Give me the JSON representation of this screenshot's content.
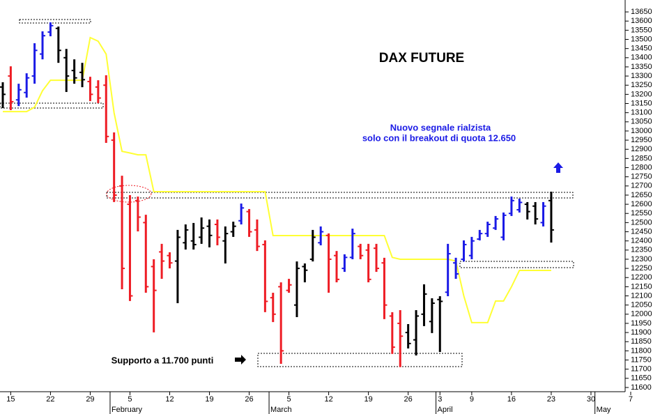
{
  "chart_data": {
    "type": "ohlc",
    "title": "DAX FUTURE",
    "signal_text": [
      "Nuovo segnale rialzista",
      "solo con il breakout di quota 12.650"
    ],
    "support_text": "Supporto a 11.700 punti",
    "x": [
      0,
      1,
      2,
      3,
      4,
      5,
      6,
      7,
      8,
      9,
      10,
      11,
      12,
      13,
      14,
      15,
      16,
      17,
      18,
      19,
      20,
      21,
      22,
      23,
      24,
      25,
      26,
      27,
      28,
      29,
      30,
      31,
      32,
      33,
      34,
      35,
      36,
      37,
      38,
      39,
      40,
      41,
      42,
      43,
      44,
      45,
      46,
      47,
      48,
      49,
      50,
      51,
      52,
      53,
      54,
      55,
      56,
      57,
      58,
      59,
      60,
      61,
      62,
      63,
      64,
      65,
      66,
      67,
      68,
      69
    ],
    "open": [
      13240,
      13300,
      13170,
      13210,
      13300,
      13420,
      13540,
      13560,
      13400,
      13330,
      13320,
      13270,
      13240,
      13250,
      12950,
      12700,
      12600,
      12620,
      12500,
      12260,
      12340,
      12320,
      12290,
      12390,
      12400,
      12420,
      12480,
      12490,
      12400,
      12450,
      12510,
      12560,
      12460,
      12380,
      12090,
      12150,
      12130,
      12050,
      12260,
      12300,
      12390,
      12430,
      12320,
      12250,
      12310,
      12370,
      12350,
      12360,
      12280,
      11990,
      11950,
      11900,
      11860,
      12000,
      11960,
      12080,
      12120,
      12280,
      12300,
      12320,
      12410,
      12440,
      12470,
      12420,
      12550,
      12570,
      12600,
      12590,
      12500,
      12620
    ],
    "high": [
      13266,
      13353,
      13258,
      13315,
      13479,
      13544,
      13593,
      13570,
      13448,
      13391,
      13372,
      13296,
      13277,
      13304,
      12992,
      12756,
      12650,
      12642,
      12543,
      12300,
      12384,
      12338,
      12460,
      12490,
      12498,
      12528,
      12517,
      12517,
      12479,
      12505,
      12604,
      12574,
      12517,
      12403,
      12117,
      12174,
      12193,
      12288,
      12277,
      12460,
      12479,
      12441,
      12345,
      12327,
      12467,
      12384,
      12384,
      12384,
      12308,
      12011,
      12022,
      11946,
      12022,
      12163,
      12087,
      12098,
      12384,
      12308,
      12403,
      12422,
      12460,
      12505,
      12536,
      12555,
      12642,
      12631,
      12612,
      12612,
      12612,
      12669
    ],
    "low": [
      13125,
      13114,
      13136,
      13182,
      13258,
      13391,
      13517,
      13372,
      13213,
      13258,
      13239,
      13163,
      13152,
      12935,
      12612,
      12136,
      12072,
      12452,
      12117,
      11901,
      12193,
      12250,
      12060,
      12353,
      12353,
      12384,
      12365,
      12376,
      12277,
      12422,
      12490,
      12422,
      12345,
      12011,
      11957,
      11729,
      12117,
      11984,
      12174,
      12288,
      12376,
      12117,
      12174,
      12231,
      12300,
      12300,
      12174,
      12231,
      11973,
      11783,
      11711,
      11813,
      11775,
      11935,
      11897,
      11794,
      12098,
      12193,
      12288,
      12300,
      12403,
      12422,
      12460,
      12403,
      12536,
      12555,
      12517,
      12490,
      12479,
      12391
    ],
    "close": [
      13200,
      13160,
      13225,
      13290,
      13440,
      13520,
      13575,
      13440,
      13300,
      13290,
      13280,
      13200,
      13180,
      12970,
      12650,
      12250,
      12100,
      12530,
      12150,
      12130,
      12290,
      12280,
      12420,
      12460,
      12380,
      12470,
      12430,
      12420,
      12440,
      12480,
      12580,
      12450,
      12370,
      12070,
      12000,
      11800,
      12160,
      12250,
      12240,
      12420,
      12450,
      12300,
      12190,
      12310,
      12440,
      12320,
      12190,
      12250,
      12050,
      11820,
      11880,
      11840,
      11990,
      12110,
      12060,
      12070,
      12330,
      12220,
      12380,
      12400,
      12440,
      12490,
      12520,
      12540,
      12620,
      12610,
      12560,
      12520,
      12590,
      12460
    ],
    "bar_colors": [
      "k",
      "r",
      "b",
      "b",
      "b",
      "b",
      "b",
      "k",
      "k",
      "k",
      "k",
      "r",
      "r",
      "r",
      "r",
      "r",
      "r",
      "r",
      "r",
      "r",
      "r",
      "r",
      "k",
      "k",
      "k",
      "k",
      "k",
      "r",
      "k",
      "k",
      "b",
      "r",
      "r",
      "r",
      "r",
      "r",
      "r",
      "k",
      "k",
      "k",
      "b",
      "r",
      "r",
      "b",
      "b",
      "r",
      "r",
      "r",
      "r",
      "r",
      "r",
      "k",
      "k",
      "k",
      "k",
      "k",
      "b",
      "b",
      "b",
      "b",
      "b",
      "b",
      "b",
      "b",
      "b",
      "b",
      "k",
      "k",
      "b",
      "k"
    ],
    "palette": {
      "k": "#000000",
      "r": "#ee1c24",
      "b": "#1a1ae6"
    },
    "stop_line": {
      "color": "#ffff33",
      "values": [
        13106,
        13106,
        13106,
        13106,
        13130,
        13220,
        13277,
        13277,
        13277,
        13277,
        13277,
        13510,
        13490,
        13420,
        13100,
        12889,
        12880,
        12870,
        12870,
        12669,
        12669,
        12669,
        12669,
        12669,
        12669,
        12669,
        12669,
        12669,
        12669,
        12669,
        12669,
        12669,
        12669,
        12669,
        12429,
        12429,
        12429,
        12429,
        12429,
        12429,
        12429,
        12429,
        12429,
        12429,
        12429,
        12429,
        12429,
        12429,
        12429,
        12310,
        12300,
        12300,
        12300,
        12300,
        12300,
        12300,
        12300,
        12290,
        12100,
        11954,
        11954,
        11954,
        12072,
        12072,
        12150,
        12239,
        12239,
        12239,
        12239,
        12239
      ]
    },
    "xlim": [
      -0.35,
      78.3
    ],
    "ylim": [
      11577,
      13715
    ],
    "xticks": [
      {
        "value": 1,
        "label": "15"
      },
      {
        "value": 6,
        "label": "22"
      },
      {
        "value": 11,
        "label": "29"
      },
      {
        "value": 16,
        "label": "5"
      },
      {
        "value": 21,
        "label": "12"
      },
      {
        "value": 26,
        "label": "19"
      },
      {
        "value": 31,
        "label": "26"
      },
      {
        "value": 36,
        "label": "5"
      },
      {
        "value": 41,
        "label": "12"
      },
      {
        "value": 46,
        "label": "19"
      },
      {
        "value": 51,
        "label": "26"
      },
      {
        "value": 55,
        "label": "3"
      },
      {
        "value": 59,
        "label": "9"
      },
      {
        "value": 64,
        "label": "16"
      },
      {
        "value": 69,
        "label": "23"
      },
      {
        "value": 74,
        "label": "30"
      },
      {
        "value": 79,
        "label": "7"
      }
    ],
    "month_labels": [
      {
        "value": 13.5,
        "label": "February"
      },
      {
        "value": 33.5,
        "label": "March"
      },
      {
        "value": 54.5,
        "label": "April"
      },
      {
        "value": 74.5,
        "label": "May"
      }
    ],
    "yticks": [
      11600,
      11650,
      11700,
      11750,
      11800,
      11850,
      11900,
      11950,
      12000,
      12050,
      12100,
      12150,
      12200,
      12250,
      12300,
      12350,
      12400,
      12450,
      12500,
      12550,
      12600,
      12650,
      12700,
      12750,
      12800,
      12850,
      12900,
      12950,
      13000,
      13050,
      13100,
      13150,
      13200,
      13250,
      13300,
      13350,
      13400,
      13450,
      13500,
      13550,
      13600,
      13650
    ],
    "grid": false
  }
}
